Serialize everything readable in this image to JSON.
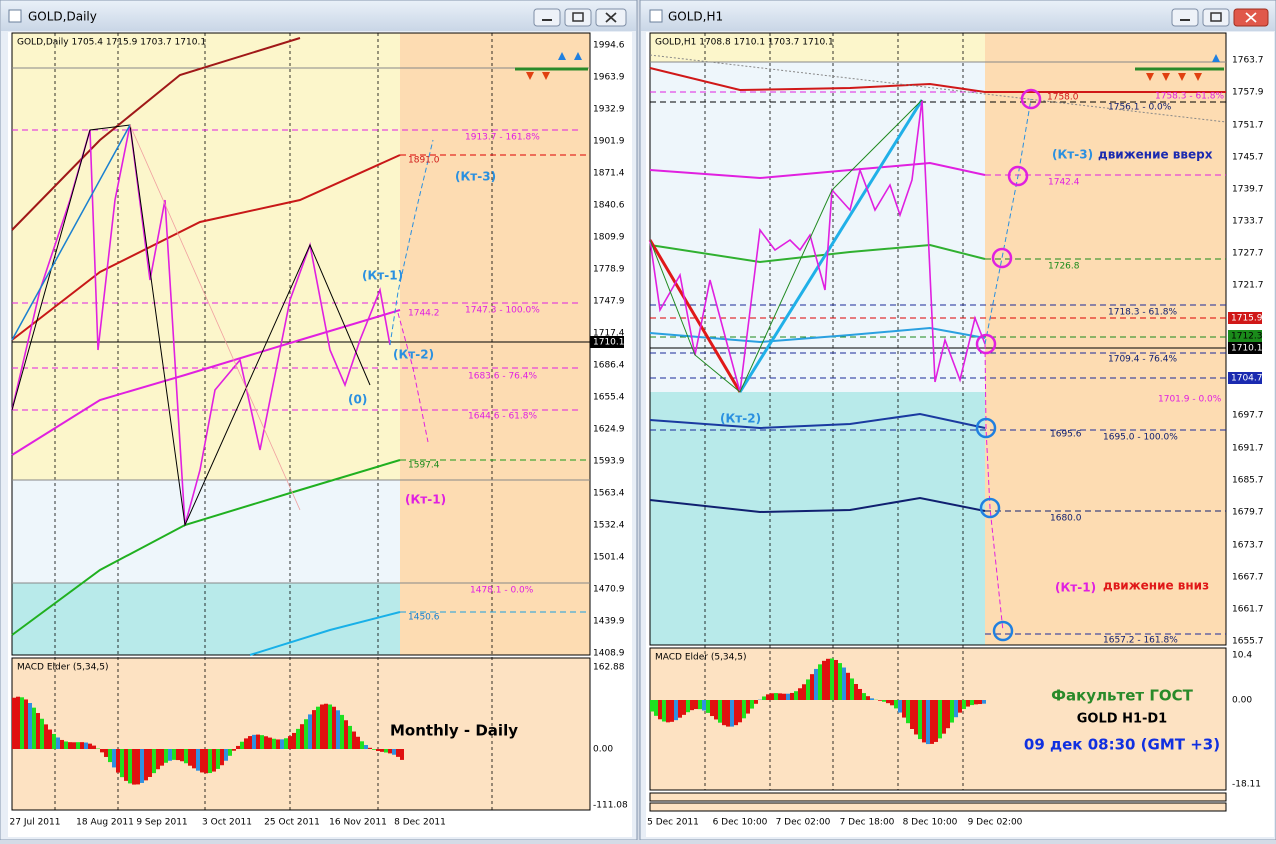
{
  "windows": [
    {
      "title": "GOLD,Daily",
      "header": "GOLD,Daily  1705.4 1715.9 1703.7 1710.1",
      "price_axis": [
        "1994.6",
        "1963.9",
        "1932.9",
        "1901.9",
        "1871.4",
        "1840.6",
        "1809.9",
        "1778.9",
        "1747.9",
        "1717.4",
        "1686.4",
        "1655.4",
        "1624.9",
        "1593.9",
        "1563.4",
        "1532.4",
        "1501.4",
        "1470.9",
        "1439.9",
        "1408.9"
      ],
      "current_price": "1710.1",
      "macd": {
        "label": "MACD Elder (5,34,5)",
        "ticks": [
          "162.88",
          "0.00",
          "-111.08"
        ]
      },
      "dates": [
        "27 Jul 2011",
        "18 Aug 2011",
        "9 Sep 2011",
        "3 Oct 2011",
        "25 Oct 2011",
        "16 Nov 2011",
        "8 Dec 2011"
      ],
      "levels": [
        "1913.7 - 161.8%",
        "1891.0",
        "1747.3 - 100.0%",
        "1744.2",
        "1683.6 - 76.4%",
        "1644.6 - 61.8%",
        "1597.4",
        "1478.1 - 0.0%",
        "1450.6"
      ],
      "annotations": [
        "(Кт-3)",
        "(Кт-1)",
        "(Кт-2)",
        "(0)",
        "(Кт-1)"
      ],
      "caption": "Monthly - Daily"
    },
    {
      "title": "GOLD,H1",
      "header": "GOLD,H1  1708.8 1710.1 1703.7 1710.1",
      "price_axis": [
        "1763.7",
        "1757.9",
        "1751.7",
        "1745.7",
        "1739.7",
        "1733.7",
        "1727.7",
        "1721.7",
        "1697.7",
        "1691.7",
        "1685.7",
        "1679.7",
        "1673.7",
        "1667.7",
        "1661.7",
        "1655.7"
      ],
      "price_marks": [
        "1715.9",
        "1712.3",
        "1710.1",
        "1704.7"
      ],
      "macd": {
        "label": "MACD Elder (5,34,5)",
        "ticks": [
          "10.4",
          "0.00",
          "-18.11"
        ]
      },
      "dates": [
        "5 Dec 2011",
        "6 Dec 10:00",
        "7 Dec 02:00",
        "7 Dec 18:00",
        "8 Dec 10:00",
        "9 Dec 02:00"
      ],
      "levels": [
        "1758.0",
        "1758.3 - 61.8%",
        "1756.1 - 0.0%",
        "1742.4",
        "1726.8",
        "1718.3 - 61.8%",
        "1709.4 - 76.4%",
        "1701.9 - 0.0%",
        "1695.6",
        "1695.0 - 100.0%",
        "1680.0",
        "1657.2 - 161.8%"
      ],
      "annotations": [
        "(Кт-3)",
        "движение вверх",
        "(Кт-2)",
        "(Кт-1)",
        "движение вниз"
      ],
      "caption": [
        "Факультет ГОСТ",
        "GOLD  H1-D1",
        "09 дек 08:30 (GMT +3)"
      ]
    }
  ]
}
